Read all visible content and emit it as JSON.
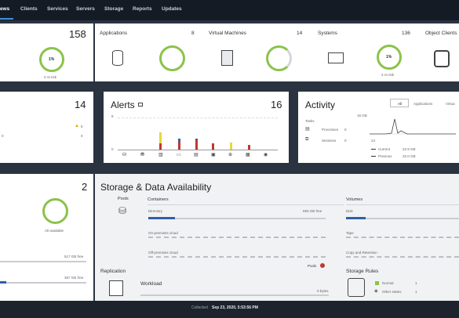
{
  "nav": {
    "items": [
      "ews",
      "Clients",
      "Services",
      "Servers",
      "Storage",
      "Reports",
      "Updates"
    ]
  },
  "overview": {
    "total": "158",
    "ring_pct": "1%",
    "at_risk": "2 At risk",
    "applications": {
      "label": "Applications",
      "count": "8"
    },
    "virtual_machines": {
      "label": "Virtual Machines",
      "count": "14"
    },
    "systems": {
      "label": "Systems",
      "count": "136",
      "ring_pct": "1%",
      "at_risk": "2 At risk"
    },
    "object_clients": {
      "label": "Object Clients"
    }
  },
  "left_mid": {
    "count": "14",
    "warning_count": "5",
    "zero_a": "0",
    "zero_b": "0"
  },
  "alerts": {
    "title": "Alerts",
    "count": "16",
    "y_tick": "8",
    "y_zero": "0"
  },
  "activity": {
    "title": "Activity",
    "tabs": [
      "All",
      "Applications",
      "Virtua"
    ],
    "tasks_label": "Tasks",
    "processes_label": "Processes",
    "processes_value": "0",
    "sessions_label": "Sessions",
    "sessions_value": "0",
    "peak_label": "16  GB",
    "axis_value": "24",
    "current_label": "Current",
    "current_value": "22.9 GB",
    "previous_label": "Previous",
    "previous_value": "32.0 GB"
  },
  "left_bottom": {
    "count": "2",
    "ring_status": "All available",
    "free1": "517 GB free",
    "free2": "357 GB free"
  },
  "storage": {
    "title": "Storage & Data Availability",
    "pools_label": "Pools",
    "containers_label": "Containers",
    "directory_label": "Directory",
    "directory_free": "593 GB free",
    "onprem_label": "On-premises cloud",
    "offprem_label": "Off-premises cloud",
    "pools_link": "Pools",
    "volumes_label": "Volumes",
    "disk_label": "Disk",
    "tape_label": "Tape",
    "copy_retention_label": "Copy and Retention",
    "replication_label": "Replication",
    "workload_label": "Workload",
    "workload_value": "0 bytes",
    "storage_rules_label": "Storage Rules",
    "normal_label": "Normal",
    "normal_value": "1",
    "other_label": "Other states",
    "other_value": "1"
  },
  "footer": {
    "collected_label": "Collected",
    "collected_value": "Sep 23, 2020, 5:53:56 PM"
  },
  "colors": {
    "accent_blue": "#2f5fa8",
    "ring_green": "#8bc34a",
    "alert_yellow": "#e8d83a",
    "alert_red": "#c0392b",
    "warning": "#e0a800"
  }
}
